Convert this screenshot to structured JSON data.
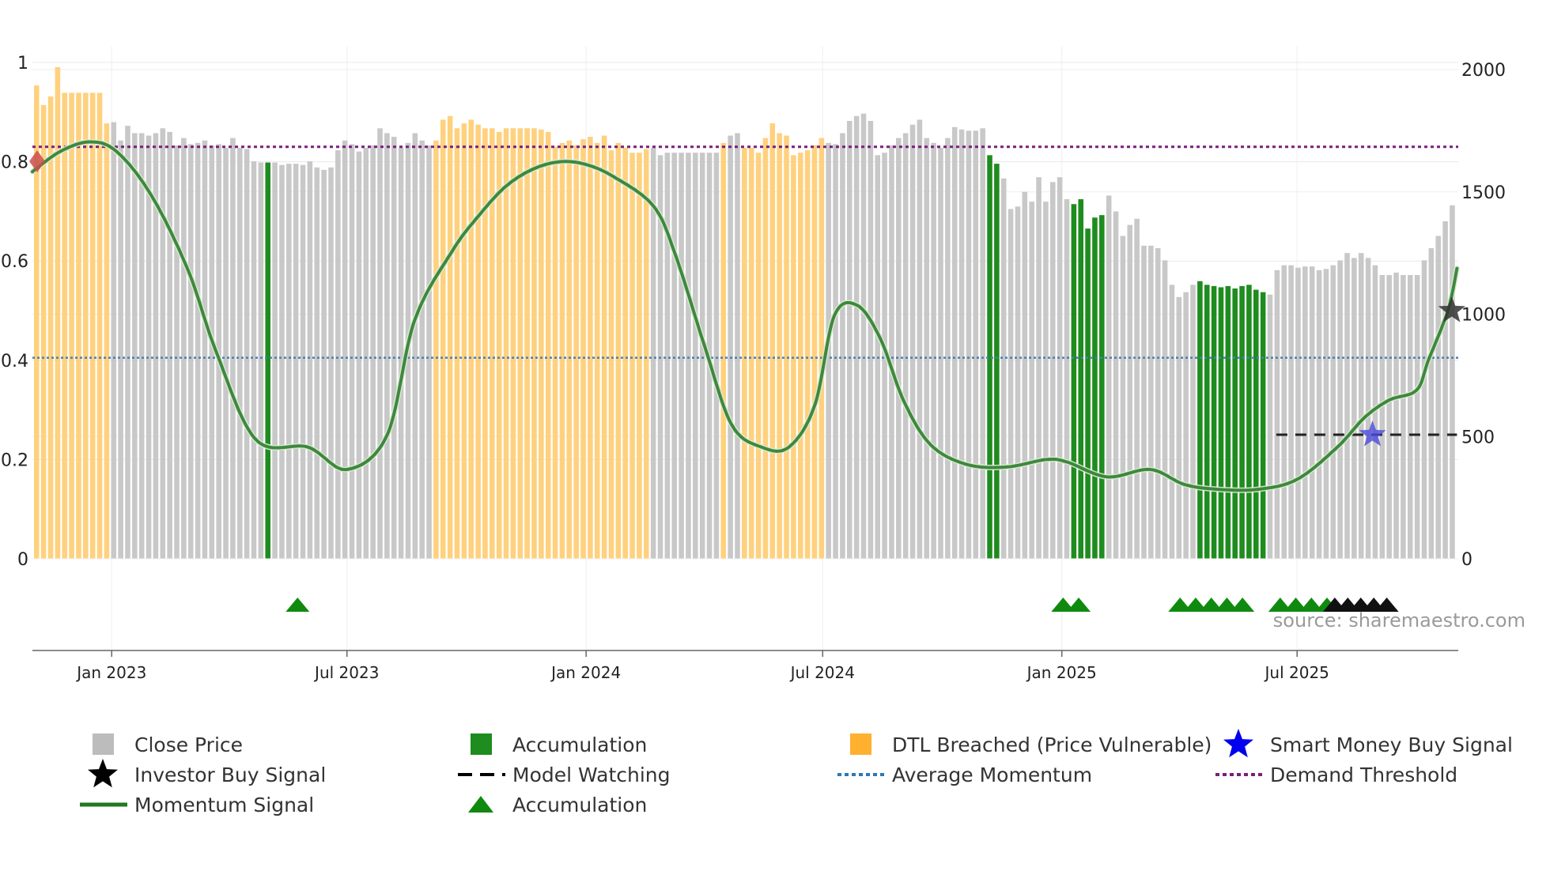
{
  "chart_data": {
    "type": "bar",
    "title": "",
    "source": "source: sharemaestro.com",
    "x_start": "2022-11-01",
    "x_end": "2025-11-02",
    "left_axis": {
      "ylim": [
        0,
        1
      ],
      "ticks": [
        0,
        0.2,
        0.4,
        0.6,
        0.8,
        1
      ],
      "tick_labels": [
        "0",
        "0.2",
        "0.4",
        "0.6",
        "0.8",
        "1"
      ]
    },
    "right_axis": {
      "ylim": [
        0,
        2000
      ],
      "ticks": [
        0,
        500,
        1000,
        1500,
        2000
      ],
      "tick_labels": [
        "0",
        "500",
        "1000",
        "1500",
        "2000"
      ]
    },
    "x_ticks": [
      {
        "date": "2023-01-01",
        "label": "Jan 2023"
      },
      {
        "date": "2023-07-01",
        "label": "Jul 2023"
      },
      {
        "date": "2024-01-01",
        "label": "Jan 2024"
      },
      {
        "date": "2024-07-01",
        "label": "Jul 2024"
      },
      {
        "date": "2025-01-01",
        "label": "Jan 2025"
      },
      {
        "date": "2025-07-01",
        "label": "Jul 2025"
      }
    ],
    "weekly_close_price": [
      1935,
      1855,
      1890,
      2010,
      1905,
      1905,
      1905,
      1905,
      1905,
      1905,
      1780,
      1785,
      1710,
      1770,
      1740,
      1740,
      1730,
      1740,
      1760,
      1745,
      1690,
      1720,
      1695,
      1700,
      1710,
      1690,
      1695,
      1680,
      1720,
      1680,
      1675,
      1625,
      1620,
      1620,
      1620,
      1610,
      1615,
      1615,
      1610,
      1625,
      1600,
      1590,
      1600,
      1670,
      1710,
      1695,
      1665,
      1680,
      1690,
      1760,
      1740,
      1725,
      1680,
      1700,
      1740,
      1710,
      1690,
      1710,
      1795,
      1810,
      1760,
      1780,
      1795,
      1775,
      1760,
      1760,
      1745,
      1760,
      1760,
      1760,
      1760,
      1760,
      1755,
      1745,
      1685,
      1700,
      1710,
      1690,
      1715,
      1725,
      1700,
      1730,
      1670,
      1700,
      1680,
      1660,
      1660,
      1675,
      1680,
      1650,
      1660,
      1660,
      1660,
      1660,
      1660,
      1660,
      1660,
      1660,
      1700,
      1730,
      1740,
      1680,
      1680,
      1660,
      1720,
      1780,
      1740,
      1730,
      1650,
      1660,
      1670,
      1690,
      1720,
      1700,
      1695,
      1740,
      1790,
      1810,
      1820,
      1790,
      1650,
      1660,
      1690,
      1720,
      1740,
      1775,
      1795,
      1720,
      1700,
      1680,
      1720,
      1765,
      1755,
      1750,
      1750,
      1760,
      1650,
      1615,
      1555,
      1430,
      1440,
      1500,
      1460,
      1560,
      1460,
      1540,
      1560,
      1470,
      1450,
      1470,
      1350,
      1395,
      1405,
      1485,
      1420,
      1320,
      1365,
      1390,
      1280,
      1280,
      1270,
      1220,
      1120,
      1070,
      1090,
      1120,
      1135,
      1120,
      1115,
      1110,
      1115,
      1105,
      1115,
      1120,
      1100,
      1090,
      1080,
      1180,
      1200,
      1200,
      1190,
      1195,
      1195,
      1180,
      1185,
      1200,
      1220,
      1250,
      1230,
      1250,
      1230,
      1200,
      1160,
      1160,
      1170,
      1160,
      1160,
      1160,
      1220,
      1270,
      1320,
      1380,
      1445
    ],
    "dtl_breached_weeks": [
      [
        0,
        10
      ],
      [
        57,
        87
      ],
      [
        98,
        98
      ],
      [
        101,
        112
      ]
    ],
    "accumulation_weeks": [
      33,
      136,
      137,
      148,
      149,
      150,
      151,
      152,
      166,
      167,
      168,
      169,
      170,
      171,
      172,
      173,
      174,
      175
    ],
    "momentum_signal": {
      "name": "Momentum Signal",
      "dates": [
        "2022-11-01",
        "2022-11-22",
        "2022-12-15",
        "2023-01-05",
        "2023-02-01",
        "2023-03-01",
        "2023-03-22",
        "2023-04-22",
        "2023-06-01",
        "2023-07-01",
        "2023-08-01",
        "2023-08-22",
        "2023-09-20",
        "2023-10-10",
        "2023-10-31",
        "2023-11-21",
        "2023-12-12",
        "2023-12-31",
        "2024-01-22",
        "2024-02-22",
        "2024-03-10",
        "2024-04-01",
        "2024-04-22",
        "2024-05-15",
        "2024-06-05",
        "2024-06-25",
        "2024-07-10",
        "2024-07-28",
        "2024-08-15",
        "2024-09-01",
        "2024-09-22",
        "2024-10-20",
        "2024-11-20",
        "2024-12-20",
        "2025-01-05",
        "2025-02-05",
        "2025-03-10",
        "2025-04-05",
        "2025-05-01",
        "2025-06-01",
        "2025-07-01",
        "2025-08-01",
        "2025-08-22",
        "2025-09-10",
        "2025-10-01",
        "2025-10-10",
        "2025-10-25",
        "2025-11-01"
      ],
      "values": [
        0.78,
        0.82,
        0.84,
        0.82,
        0.73,
        0.58,
        0.42,
        0.24,
        0.225,
        0.18,
        0.25,
        0.48,
        0.62,
        0.69,
        0.75,
        0.785,
        0.8,
        0.795,
        0.77,
        0.71,
        0.61,
        0.43,
        0.27,
        0.225,
        0.225,
        0.31,
        0.49,
        0.51,
        0.44,
        0.32,
        0.23,
        0.19,
        0.185,
        0.2,
        0.195,
        0.165,
        0.18,
        0.15,
        0.14,
        0.14,
        0.16,
        0.225,
        0.285,
        0.32,
        0.34,
        0.4,
        0.5,
        0.585
      ]
    },
    "average_momentum": {
      "name": "Average Momentum",
      "value": 0.405
    },
    "demand_threshold": {
      "name": "Demand Threshold",
      "value": 0.83
    },
    "model_watching": {
      "name": "Model Watching",
      "value": 0.25,
      "from": "2025-06-15",
      "to": "2025-11-01"
    },
    "investor_buy_signal": {
      "name": "Investor Buy Signal",
      "date": "2025-10-28",
      "value": 0.5
    },
    "smart_money_buy_signal": {
      "name": "Smart Money Buy Signal",
      "date": "2025-08-28",
      "value": 0.25
    },
    "demand_entry_marker": {
      "date": "2022-11-01",
      "value": 0.815
    },
    "accumulation_triangles": [
      "2023-05-24",
      "2025-01-02",
      "2025-01-14",
      "2025-04-02",
      "2025-04-14",
      "2025-04-26",
      "2025-05-08",
      "2025-05-20",
      "2025-06-18",
      "2025-06-30",
      "2025-07-12",
      "2025-07-24"
    ],
    "model_watching_triangles": [
      "2025-07-30",
      "2025-08-09",
      "2025-08-19",
      "2025-08-29",
      "2025-09-08"
    ],
    "legend": [
      {
        "key": "close",
        "label": "Close Price",
        "color": "#bcbcbc"
      },
      {
        "key": "accum_bar",
        "label": "Accumulation",
        "color": "#1e8c1e"
      },
      {
        "key": "dtl",
        "label": "DTL Breached (Price Vulnerable)",
        "color": "#ffb02e"
      },
      {
        "key": "smart",
        "label": "Smart Money Buy Signal",
        "color": "#0000ee"
      },
      {
        "key": "investor",
        "label": "Investor Buy Signal",
        "color": "#000000"
      },
      {
        "key": "watching",
        "label": "Model Watching",
        "color": "#000000"
      },
      {
        "key": "avgmom",
        "label": "Average Momentum",
        "color": "#2f78b3"
      },
      {
        "key": "demand",
        "label": "Demand Threshold",
        "color": "#7a1f7a"
      },
      {
        "key": "momentum",
        "label": "Momentum Signal",
        "color": "#1e7a1e"
      },
      {
        "key": "accum_tri",
        "label": "Accumulation",
        "color": "#0f8a0f"
      }
    ]
  }
}
